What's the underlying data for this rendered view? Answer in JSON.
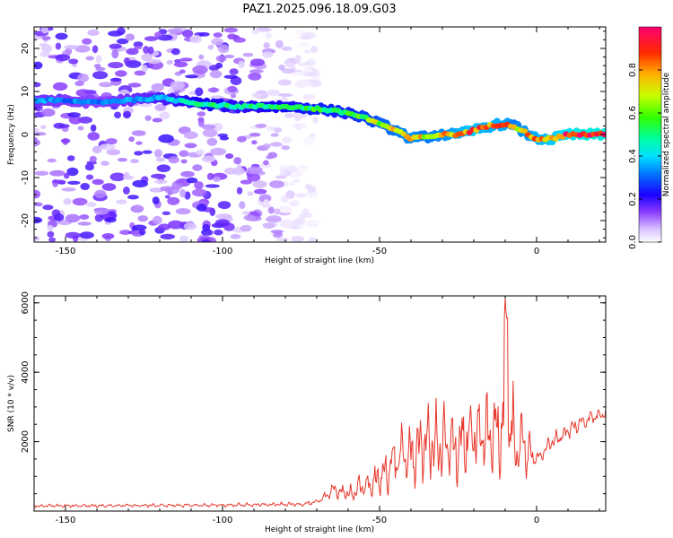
{
  "page_title": "PAZ1.2025.096.18.09.G03",
  "chart_data": [
    {
      "type": "heatmap",
      "title": "PAZ1.2025.096.18.09.G03",
      "xlabel": "Height of straight line (km)",
      "ylabel": "Frequency (Hz)",
      "xlim": [
        -160,
        22
      ],
      "ylim": [
        -25,
        25
      ],
      "xticks": [
        -150,
        -100,
        -50,
        0
      ],
      "yticks": [
        -20,
        -10,
        0,
        10,
        20
      ],
      "colorbar": {
        "label": "Normalized spectral amplitude",
        "range": [
          0,
          1
        ],
        "ticks": [
          0.0,
          0.2,
          0.4,
          0.6,
          0.8
        ],
        "colors": [
          "#ffffff",
          "#e8d8ff",
          "#b88cff",
          "#6a00ff",
          "#0000ff",
          "#00c0ff",
          "#00ff80",
          "#40ff00",
          "#ffff00",
          "#ff8000",
          "#ff0000",
          "#ff0060"
        ]
      },
      "ridge": {
        "x": [
          -160,
          -140,
          -120,
          -105,
          -95,
          -80,
          -70,
          -60,
          -55,
          -50,
          -45,
          -40,
          -35,
          -30,
          -25,
          -20,
          -15,
          -10,
          -7,
          -5,
          0,
          5,
          10,
          15,
          22
        ],
        "freq": [
          8,
          7.5,
          8.5,
          7,
          6.5,
          6.5,
          6,
          5,
          4,
          2.5,
          1,
          -1,
          -0.5,
          0,
          0,
          1,
          2,
          2.5,
          2,
          1,
          -1,
          -1,
          0,
          0,
          0
        ],
        "strength": [
          0.35,
          0.3,
          0.4,
          0.5,
          0.45,
          0.5,
          0.55,
          0.55,
          0.6,
          0.65,
          0.7,
          0.75,
          0.7,
          0.75,
          0.8,
          0.85,
          0.8,
          0.8,
          0.7,
          0.75,
          0.8,
          0.85,
          0.9,
          0.95,
          0.95
        ]
      },
      "noise_extent_km": [
        -160,
        -70
      ]
    },
    {
      "type": "line",
      "xlabel": "Height of straight line (km)",
      "ylabel": "SNR (10 * v/v)",
      "xlim": [
        -160,
        22
      ],
      "ylim": [
        0,
        6200
      ],
      "xticks": [
        -150,
        -100,
        -50,
        0
      ],
      "yticks": [
        2000,
        4000,
        6000
      ],
      "series": [
        {
          "name": "SNR",
          "color": "#e8362a",
          "envelope_x": [
            -160,
            -100,
            -75,
            -70,
            -65,
            -60,
            -55,
            -50,
            -45,
            -40,
            -35,
            -30,
            -25,
            -20,
            -15,
            -12,
            -10,
            -9,
            -7,
            -5,
            -3,
            0,
            5,
            10,
            15,
            22
          ],
          "envelope_mid": [
            150,
            170,
            200,
            250,
            600,
            500,
            700,
            900,
            1500,
            1600,
            2000,
            1800,
            1900,
            2100,
            2200,
            2300,
            2800,
            3000,
            1800,
            2000,
            1700,
            1500,
            2000,
            2300,
            2600,
            2850
          ],
          "envelope_amp": [
            60,
            60,
            70,
            100,
            300,
            350,
            500,
            700,
            1000,
            1200,
            1300,
            1500,
            1500,
            1600,
            1500,
            1500,
            2600,
            2600,
            1600,
            1400,
            1000,
            300,
            300,
            300,
            300,
            200
          ]
        }
      ]
    }
  ]
}
